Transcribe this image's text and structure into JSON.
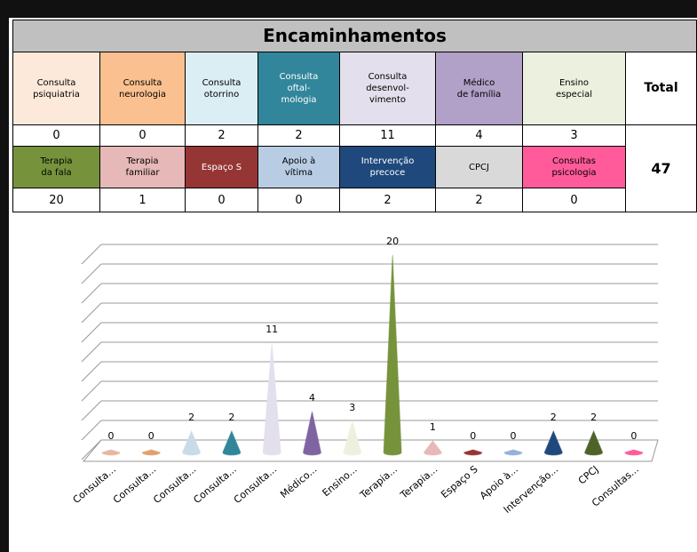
{
  "table": {
    "title": "Encaminhamentos",
    "total_label": "Total",
    "total_value": 47,
    "rows": [
      [
        {
          "label": "Consulta\npsiquiatria",
          "color": "#fde9d9",
          "text_color": "#000000",
          "value": 0
        },
        {
          "label": "Consulta\nneurologia",
          "color": "#fac090",
          "text_color": "#000000",
          "value": 0
        },
        {
          "label": "Consulta\notorrino",
          "color": "#dbeef4",
          "text_color": "#000000",
          "value": 2
        },
        {
          "label": "Consulta\noftal-\nmologia",
          "color": "#31869b",
          "text_color": "#ffffff",
          "value": 2
        },
        {
          "label": "Consulta\ndesenvol-\nvimento",
          "color": "#e4dfec",
          "text_color": "#000000",
          "value": 11
        },
        {
          "label": "Médico\nde família",
          "color": "#b1a0c7",
          "text_color": "#000000",
          "value": 4
        },
        {
          "label": "Ensino\nespecial",
          "color": "#ebf1de",
          "text_color": "#000000",
          "value": 3
        }
      ],
      [
        {
          "label": "Terapia\nda fala",
          "color": "#76933c",
          "text_color": "#000000",
          "value": 20
        },
        {
          "label": "Terapia\nfamiliar",
          "color": "#e6b8b7",
          "text_color": "#000000",
          "value": 1
        },
        {
          "label": "Espaço S",
          "color": "#963634",
          "text_color": "#ffffff",
          "value": 0
        },
        {
          "label": "Apoio à\nvítima",
          "color": "#b8cce4",
          "text_color": "#000000",
          "value": 0
        },
        {
          "label": "Intervenção\nprecoce",
          "color": "#1f497d",
          "text_color": "#ffffff",
          "value": 2
        },
        {
          "label": "CPCJ",
          "color": "#d9d9d9",
          "text_color": "#000000",
          "value": 2
        },
        {
          "label": "Consultas\npsicologia",
          "color": "#ff5b9a",
          "text_color": "#000000",
          "value": 0
        }
      ]
    ]
  },
  "chart_data": {
    "type": "cone",
    "categories": [
      "Consulta...",
      "Consulta...",
      "Consulta...",
      "Consulta...",
      "Consulta...",
      "Médico...",
      "Ensino...",
      "Terapia...",
      "Terapia...",
      "Espaço S",
      "Apoio à...",
      "Intervenção...",
      "CPCJ",
      "Consultas..."
    ],
    "values": [
      0,
      0,
      2,
      2,
      11,
      4,
      3,
      20,
      1,
      0,
      0,
      2,
      2,
      0
    ],
    "colors": [
      "#e6b8a2",
      "#e0a070",
      "#c9dbe6",
      "#31869b",
      "#e4dfec",
      "#8064a2",
      "#ebf1de",
      "#76933c",
      "#e6b8b7",
      "#963634",
      "#95b3d7",
      "#1f497d",
      "#4f6228",
      "#ff5b9a"
    ],
    "ylim": [
      0,
      20
    ],
    "yticks": [
      0,
      2,
      4,
      6,
      8,
      10,
      12,
      14,
      16,
      18,
      20
    ],
    "grid": true
  }
}
